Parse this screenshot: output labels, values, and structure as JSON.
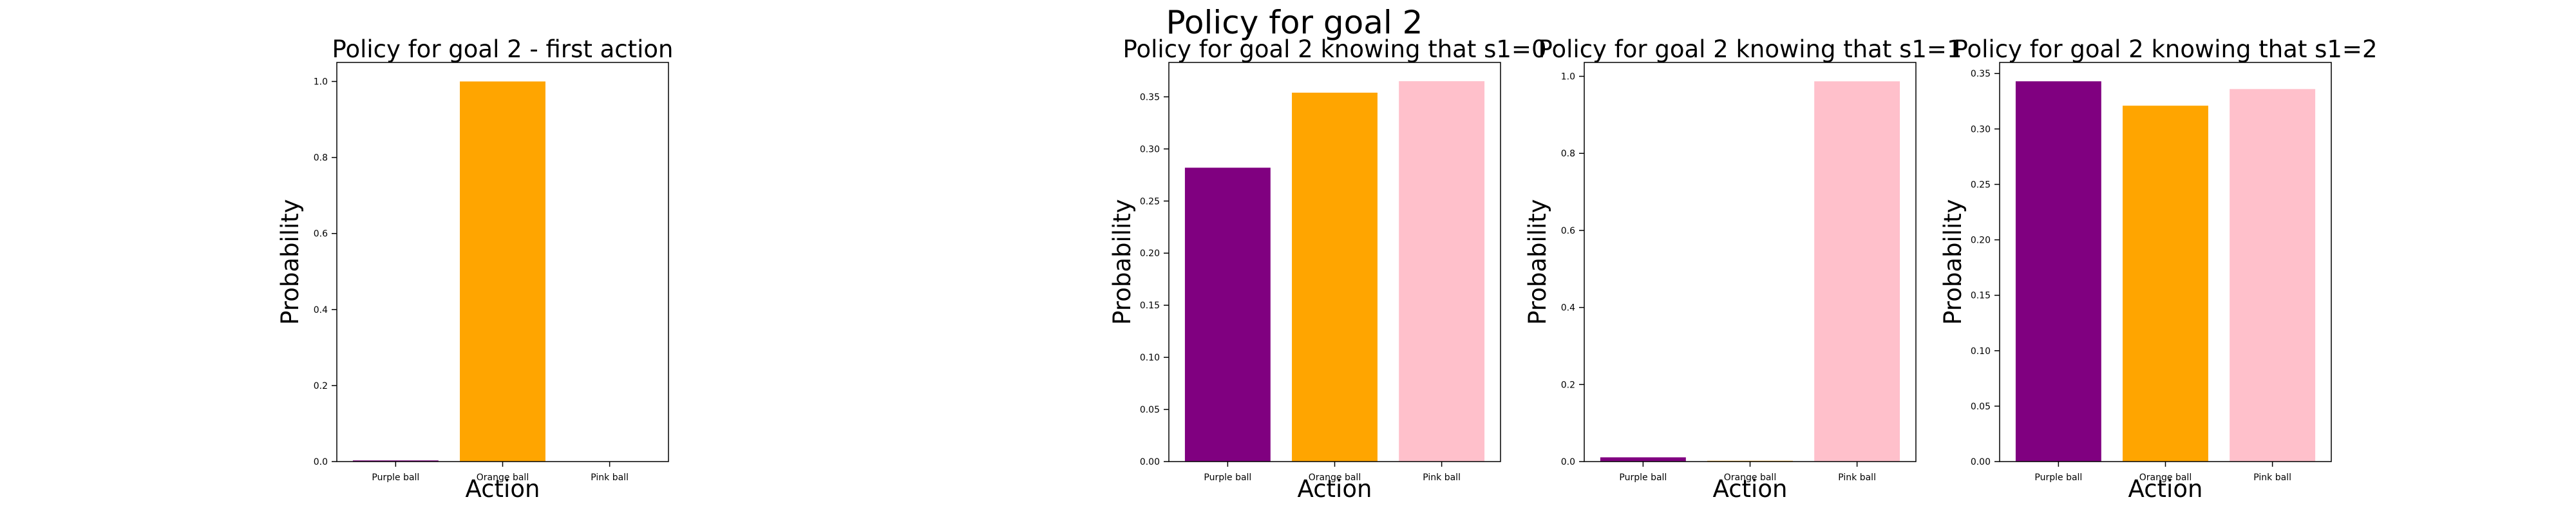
{
  "figure": {
    "suptitle": "Policy for goal 2"
  },
  "colors": {
    "purple": "#800080",
    "orange": "#FFA500",
    "pink": "#FFC0CB",
    "axis": "#000000"
  },
  "chart_data": [
    {
      "type": "bar",
      "title": "Policy for goal 2 - first action",
      "xlabel": "Action",
      "ylabel": "Probability",
      "categories": [
        "Purple ball",
        "Orange ball",
        "Pink ball"
      ],
      "values": [
        0.003,
        1.0,
        0.0
      ],
      "colors": [
        "#800080",
        "#FFA500",
        "#FFC0CB"
      ],
      "ylim": [
        0,
        1.05
      ],
      "yticks": [
        "0.0",
        "0.2",
        "0.4",
        "0.6",
        "0.8",
        "1.0"
      ],
      "ytick_values": [
        0.0,
        0.2,
        0.4,
        0.6,
        0.8,
        1.0
      ]
    },
    {
      "type": "bar",
      "title": "Policy for goal 2 knowing that s1=0",
      "xlabel": "Action",
      "ylabel": "Probability",
      "categories": [
        "Purple ball",
        "Orange ball",
        "Pink ball"
      ],
      "values": [
        0.282,
        0.354,
        0.365
      ],
      "colors": [
        "#800080",
        "#FFA500",
        "#FFC0CB"
      ],
      "ylim": [
        0,
        0.383
      ],
      "yticks": [
        "0.00",
        "0.05",
        "0.10",
        "0.15",
        "0.20",
        "0.25",
        "0.30",
        "0.35"
      ],
      "ytick_values": [
        0.0,
        0.05,
        0.1,
        0.15,
        0.2,
        0.25,
        0.3,
        0.35
      ]
    },
    {
      "type": "bar",
      "title": "Policy for goal 2 knowing that s1=1",
      "xlabel": "Action",
      "ylabel": "Probability",
      "categories": [
        "Purple ball",
        "Orange ball",
        "Pink ball"
      ],
      "values": [
        0.011,
        0.002,
        0.987
      ],
      "colors": [
        "#800080",
        "#FFA500",
        "#FFC0CB"
      ],
      "ylim": [
        0,
        1.036
      ],
      "yticks": [
        "0.0",
        "0.2",
        "0.4",
        "0.6",
        "0.8",
        "1.0"
      ],
      "ytick_values": [
        0.0,
        0.2,
        0.4,
        0.6,
        0.8,
        1.0
      ]
    },
    {
      "type": "bar",
      "title": "Policy for goal 2 knowing that s1=2",
      "xlabel": "Action",
      "ylabel": "Probability",
      "categories": [
        "Purple ball",
        "Orange ball",
        "Pink ball"
      ],
      "values": [
        0.343,
        0.321,
        0.336
      ],
      "colors": [
        "#800080",
        "#FFA500",
        "#FFC0CB"
      ],
      "ylim": [
        0,
        0.36
      ],
      "yticks": [
        "0.00",
        "0.05",
        "0.10",
        "0.15",
        "0.20",
        "0.25",
        "0.30",
        "0.35"
      ],
      "ytick_values": [
        0.0,
        0.05,
        0.1,
        0.15,
        0.2,
        0.25,
        0.3,
        0.35
      ]
    }
  ]
}
